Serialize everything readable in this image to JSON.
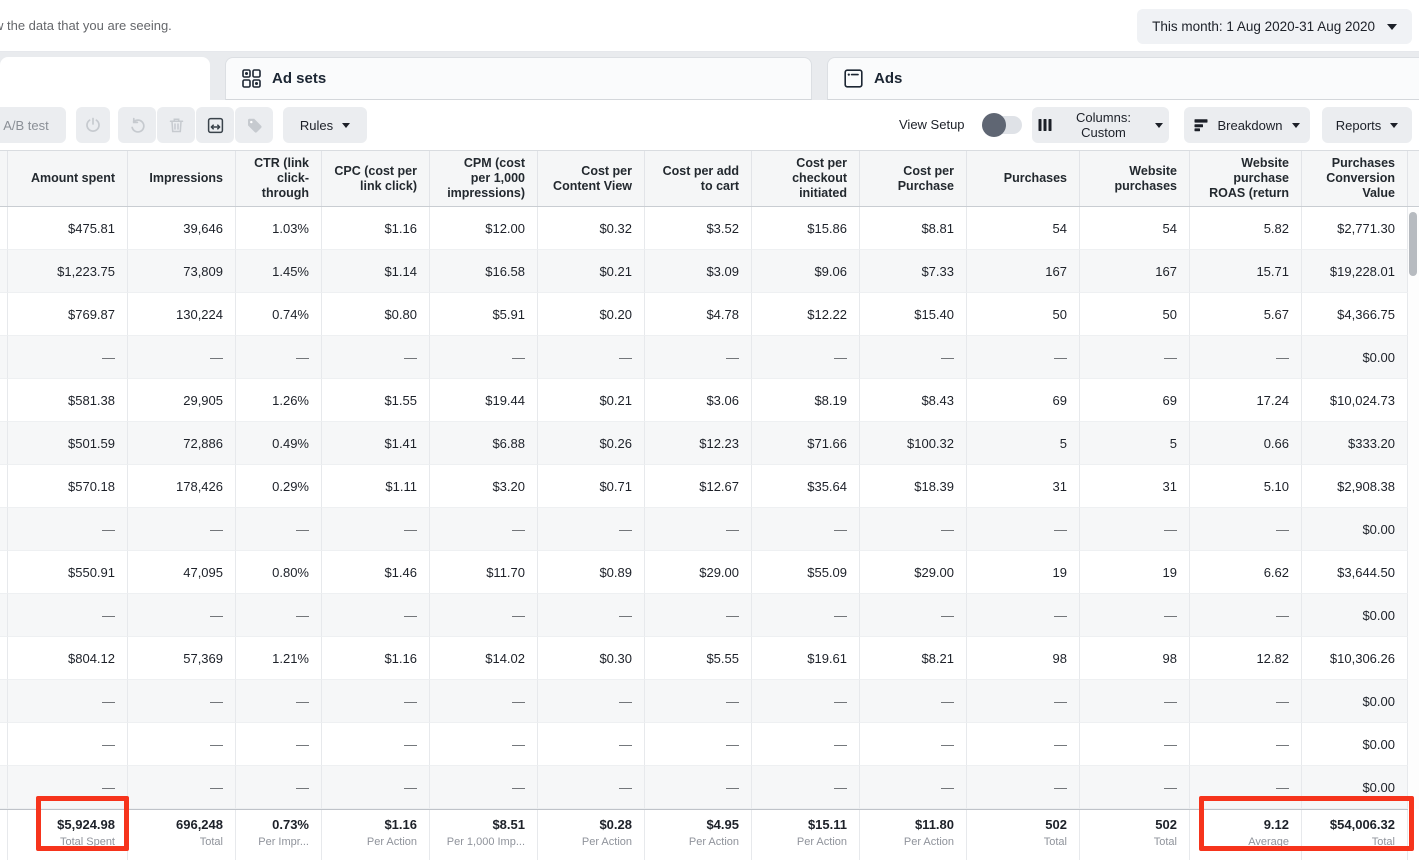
{
  "colors": {
    "annotation_red": "#f6341c",
    "button_bg": "#ebedf0",
    "alt_row_bg": "#f6f7f8",
    "header_bg": "#f5f6f7",
    "tabbar_bg": "#e9ebee"
  },
  "topbar": {
    "notice": "w the data that you are seeing.",
    "date_range_label": "This month: 1 Aug 2020-31 Aug 2020"
  },
  "tabs": {
    "adsets": "Ad sets",
    "ads": "Ads"
  },
  "toolbar": {
    "ab_test_label": "A/B test",
    "rules_label": "Rules",
    "view_setup_label": "View Setup",
    "view_setup_state": "off",
    "columns_label": "Columns: Custom",
    "breakdown_label": "Breakdown",
    "reports_label": "Reports"
  },
  "icons": {
    "adsets_tab": "grid-icon",
    "ads_tab": "ad-frame-icon",
    "boost": "power-icon",
    "undo": "undo-arrow-icon",
    "delete": "trash-icon",
    "export": "preview-box-icon",
    "tag": "tag-icon",
    "columns": "columns-bars-icon",
    "breakdown": "breakdown-bars-icon",
    "caret": "caret-down-icon"
  },
  "table": {
    "columns": [
      "Amount spent",
      "Impressions",
      "CTR (link click-through",
      "CPC (cost per link click)",
      "CPM (cost per 1,000 impressions)",
      "Cost per Content View",
      "Cost per add to cart",
      "Cost per checkout initiated",
      "Cost per Purchase",
      "Purchases",
      "Website purchases",
      "Website purchase ROAS (return",
      "Purchases Conversion Value"
    ],
    "rows": [
      [
        "$475.81",
        "39,646",
        "1.03%",
        "$1.16",
        "$12.00",
        "$0.32",
        "$3.52",
        "$15.86",
        "$8.81",
        "54",
        "54",
        "5.82",
        "$2,771.30"
      ],
      [
        "$1,223.75",
        "73,809",
        "1.45%",
        "$1.14",
        "$16.58",
        "$0.21",
        "$3.09",
        "$9.06",
        "$7.33",
        "167",
        "167",
        "15.71",
        "$19,228.01"
      ],
      [
        "$769.87",
        "130,224",
        "0.74%",
        "$0.80",
        "$5.91",
        "$0.20",
        "$4.78",
        "$12.22",
        "$15.40",
        "50",
        "50",
        "5.67",
        "$4,366.75"
      ],
      [
        "—",
        "—",
        "—",
        "—",
        "—",
        "—",
        "—",
        "—",
        "—",
        "—",
        "—",
        "—",
        "$0.00"
      ],
      [
        "$581.38",
        "29,905",
        "1.26%",
        "$1.55",
        "$19.44",
        "$0.21",
        "$3.06",
        "$8.19",
        "$8.43",
        "69",
        "69",
        "17.24",
        "$10,024.73"
      ],
      [
        "$501.59",
        "72,886",
        "0.49%",
        "$1.41",
        "$6.88",
        "$0.26",
        "$12.23",
        "$71.66",
        "$100.32",
        "5",
        "5",
        "0.66",
        "$333.20"
      ],
      [
        "$570.18",
        "178,426",
        "0.29%",
        "$1.11",
        "$3.20",
        "$0.71",
        "$12.67",
        "$35.64",
        "$18.39",
        "31",
        "31",
        "5.10",
        "$2,908.38"
      ],
      [
        "—",
        "—",
        "—",
        "—",
        "—",
        "—",
        "—",
        "—",
        "—",
        "—",
        "—",
        "—",
        "$0.00"
      ],
      [
        "$550.91",
        "47,095",
        "0.80%",
        "$1.46",
        "$11.70",
        "$0.89",
        "$29.00",
        "$55.09",
        "$29.00",
        "19",
        "19",
        "6.62",
        "$3,644.50"
      ],
      [
        "—",
        "—",
        "—",
        "—",
        "—",
        "—",
        "—",
        "—",
        "—",
        "—",
        "—",
        "—",
        "$0.00"
      ],
      [
        "$804.12",
        "57,369",
        "1.21%",
        "$1.16",
        "$14.02",
        "$0.30",
        "$5.55",
        "$19.61",
        "$8.21",
        "98",
        "98",
        "12.82",
        "$10,306.26"
      ],
      [
        "—",
        "—",
        "—",
        "—",
        "—",
        "—",
        "—",
        "—",
        "—",
        "—",
        "—",
        "—",
        "$0.00"
      ],
      [
        "—",
        "—",
        "—",
        "—",
        "—",
        "—",
        "—",
        "—",
        "—",
        "—",
        "—",
        "—",
        "$0.00"
      ],
      [
        "—",
        "—",
        "—",
        "—",
        "—",
        "—",
        "—",
        "—",
        "—",
        "—",
        "—",
        "—",
        "$0.00"
      ]
    ],
    "footer": {
      "values": [
        "$5,924.98",
        "696,248",
        "0.73%",
        "$1.16",
        "$8.51",
        "$0.28",
        "$4.95",
        "$15.11",
        "$11.80",
        "502",
        "502",
        "9.12",
        "$54,006.32"
      ],
      "labels": [
        "Total Spent",
        "Total",
        "Per Impr...",
        "Per Action",
        "Per 1,000 Imp...",
        "Per Action",
        "Per Action",
        "Per Action",
        "Per Action",
        "Total",
        "Total",
        "Average",
        "Total"
      ]
    }
  }
}
